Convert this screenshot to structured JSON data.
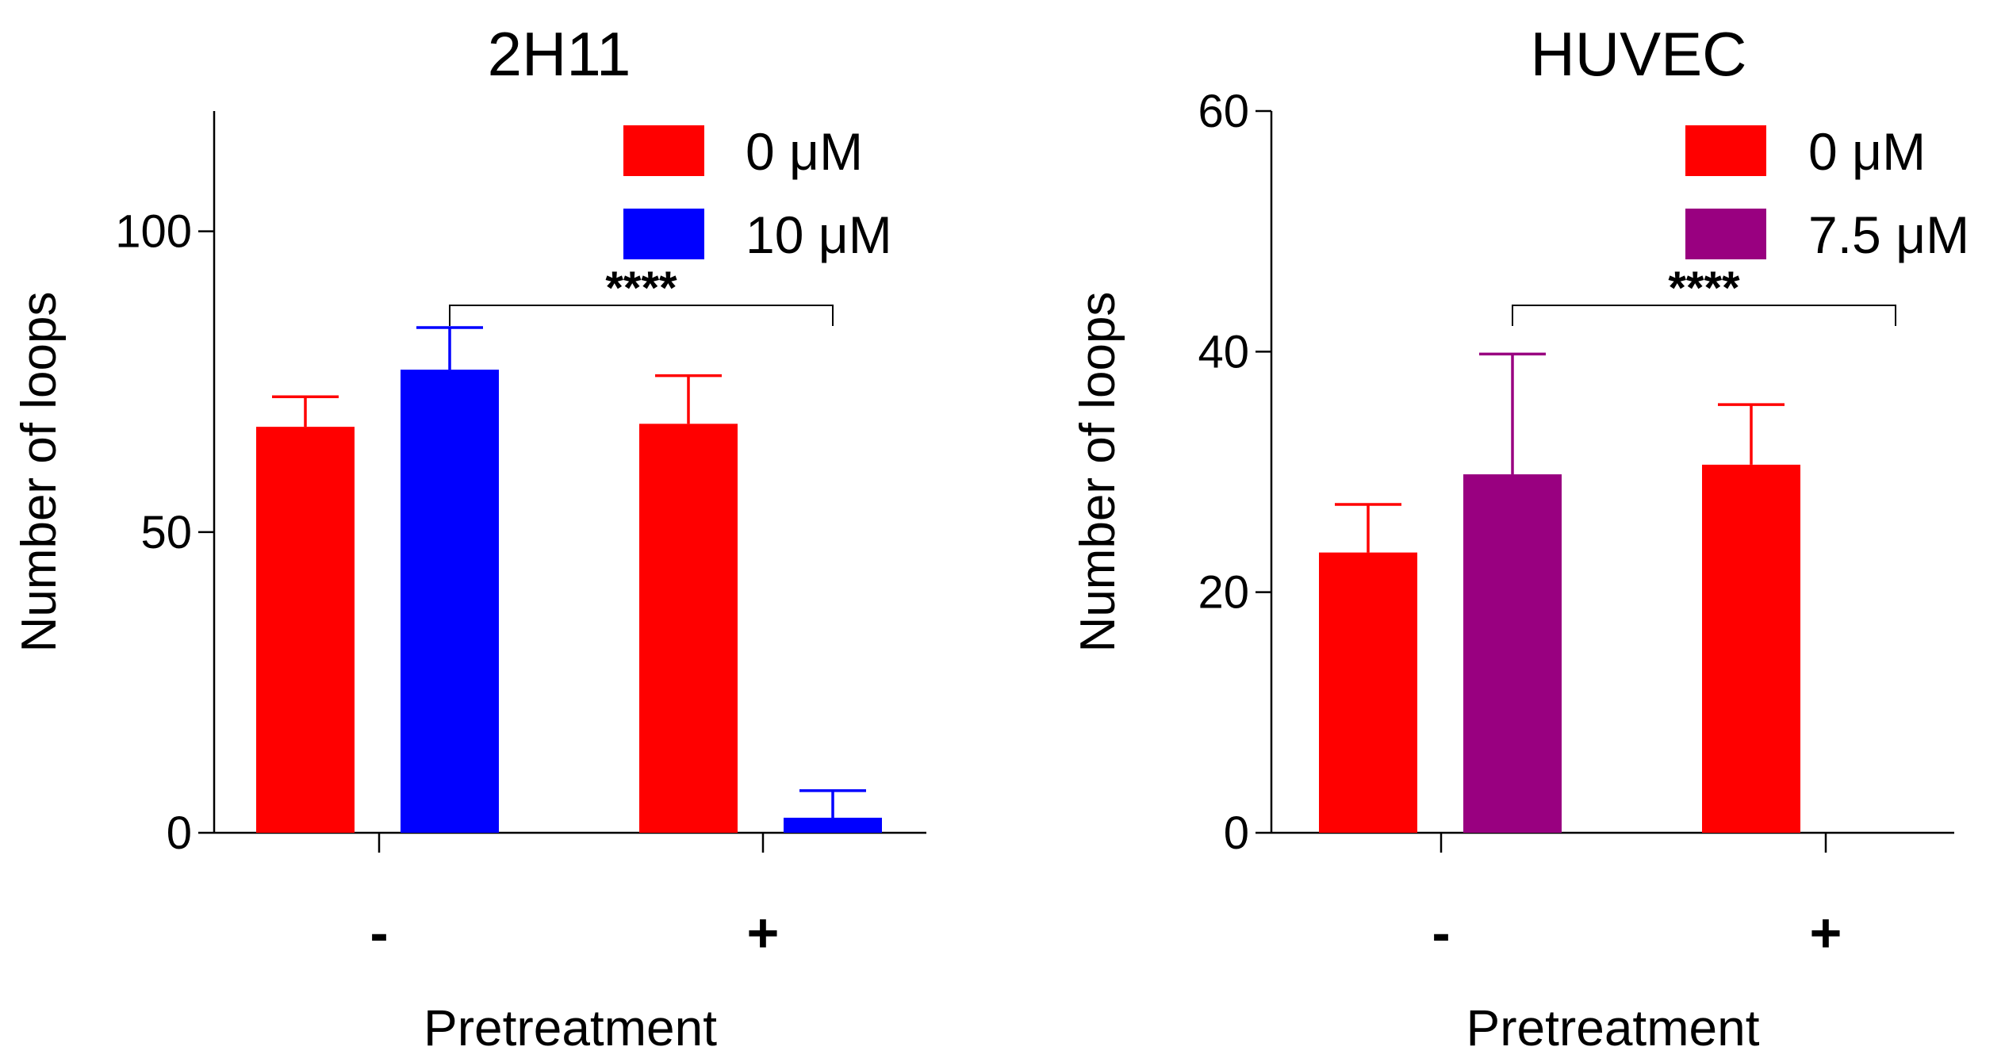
{
  "chart_data": [
    {
      "type": "bar",
      "title": "2H11",
      "xlabel": "Pretreatment",
      "ylabel": "Number of loops",
      "ylim": [
        0,
        120
      ],
      "yticks": [
        0,
        50,
        100
      ],
      "categories": [
        "-",
        "+"
      ],
      "series": [
        {
          "name": "0 μM",
          "color": "#ff0000",
          "values": [
            67.5,
            68
          ],
          "errors": [
            5,
            8
          ]
        },
        {
          "name": "10 μM",
          "color": "#0000ff",
          "values": [
            77,
            2.5
          ],
          "errors": [
            7,
            4.5
          ]
        }
      ],
      "significance": {
        "label": "****",
        "from": "10 μM / -",
        "to": "10 μM / +"
      },
      "legend_position": "top-right"
    },
    {
      "type": "bar",
      "title": "HUVEC",
      "xlabel": "Pretreatment",
      "ylabel": "Number of loops",
      "ylim": [
        0,
        60
      ],
      "yticks": [
        0,
        20,
        40,
        60
      ],
      "categories": [
        "-",
        "+"
      ],
      "series": [
        {
          "name": "0 μM",
          "color": "#ff0000",
          "values": [
            23.3,
            30.6
          ],
          "errors": [
            4,
            5
          ]
        },
        {
          "name": "7.5 μM",
          "color": "#990080",
          "values": [
            29.8,
            0
          ],
          "errors": [
            10,
            0
          ]
        }
      ],
      "significance": {
        "label": "****",
        "from": "7.5 μM / -",
        "to": "7.5 μM / +"
      },
      "legend_position": "top-right"
    }
  ]
}
